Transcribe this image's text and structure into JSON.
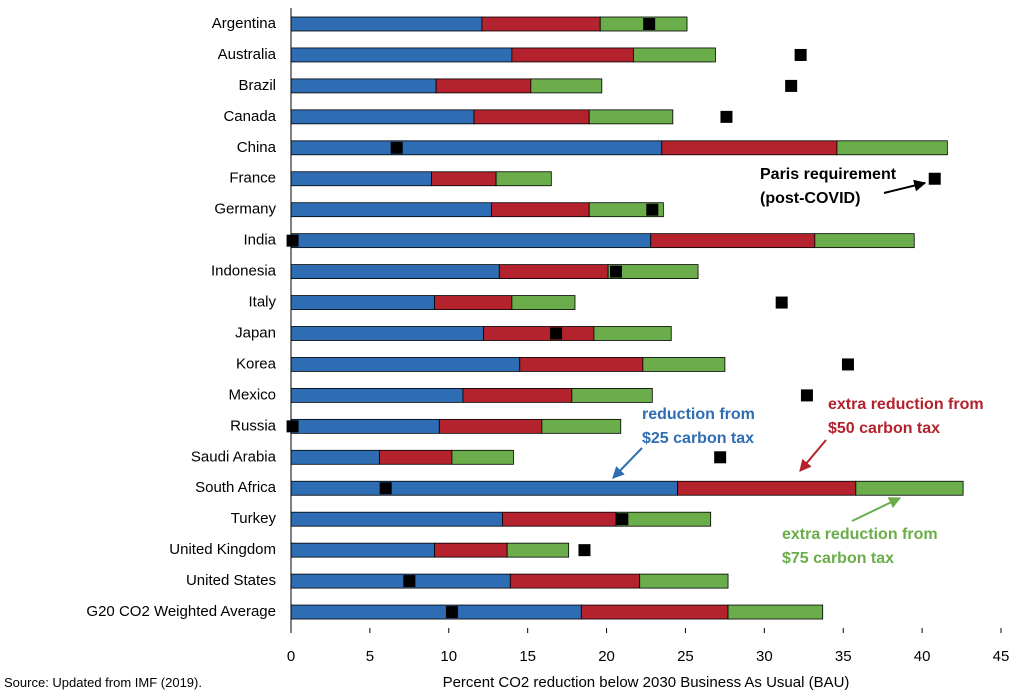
{
  "chart_data": {
    "type": "stacked-bar-h",
    "categories": [
      "Argentina",
      "Australia",
      "Brazil",
      "Canada",
      "China",
      "France",
      "Germany",
      "India",
      "Indonesia",
      "Italy",
      "Japan",
      "Korea",
      "Mexico",
      "Russia",
      "Saudi Arabia",
      "South Africa",
      "Turkey",
      "United Kingdom",
      "United States",
      "G20 CO2 Weighted Average"
    ],
    "series": [
      {
        "name": "reduction from\n$25 carbon tax",
        "color": "#2e6db4",
        "values": [
          12.1,
          14.0,
          9.2,
          11.6,
          23.5,
          8.9,
          12.7,
          22.8,
          13.2,
          9.1,
          12.2,
          14.5,
          10.9,
          9.4,
          5.6,
          24.5,
          13.4,
          9.1,
          13.9,
          18.4
        ]
      },
      {
        "name": "extra reduction from\n$50 carbon tax",
        "color": "#b3222d",
        "values": [
          7.5,
          7.7,
          6.0,
          7.3,
          11.1,
          4.1,
          6.2,
          10.4,
          6.9,
          4.9,
          7.0,
          7.8,
          6.9,
          6.5,
          4.6,
          11.3,
          7.2,
          4.6,
          8.2,
          9.3
        ]
      },
      {
        "name": "extra reduction from\n$75 carbon tax",
        "color": "#6aad4a",
        "values": [
          5.5,
          5.2,
          4.5,
          5.3,
          7.0,
          3.5,
          4.7,
          6.3,
          5.7,
          4.0,
          4.9,
          5.2,
          5.1,
          5.0,
          3.9,
          6.8,
          6.0,
          3.9,
          5.6,
          6.0
        ]
      }
    ],
    "markers": {
      "name": "Paris requirement\n(post-COVID)",
      "color": "#000000",
      "values": [
        22.7,
        32.3,
        31.7,
        27.6,
        6.7,
        40.8,
        22.9,
        0.1,
        20.6,
        31.1,
        16.8,
        35.3,
        32.7,
        0.1,
        27.2,
        6.0,
        21.0,
        18.6,
        7.5,
        10.2
      ]
    },
    "xlabel": "Percent CO2 reduction below 2030 Business As Usual (BAU)",
    "xlim": [
      0,
      45
    ],
    "xticks": [
      0,
      5,
      10,
      15,
      20,
      25,
      30,
      35,
      40,
      45
    ],
    "source": "Source: Updated from IMF (2019)."
  }
}
